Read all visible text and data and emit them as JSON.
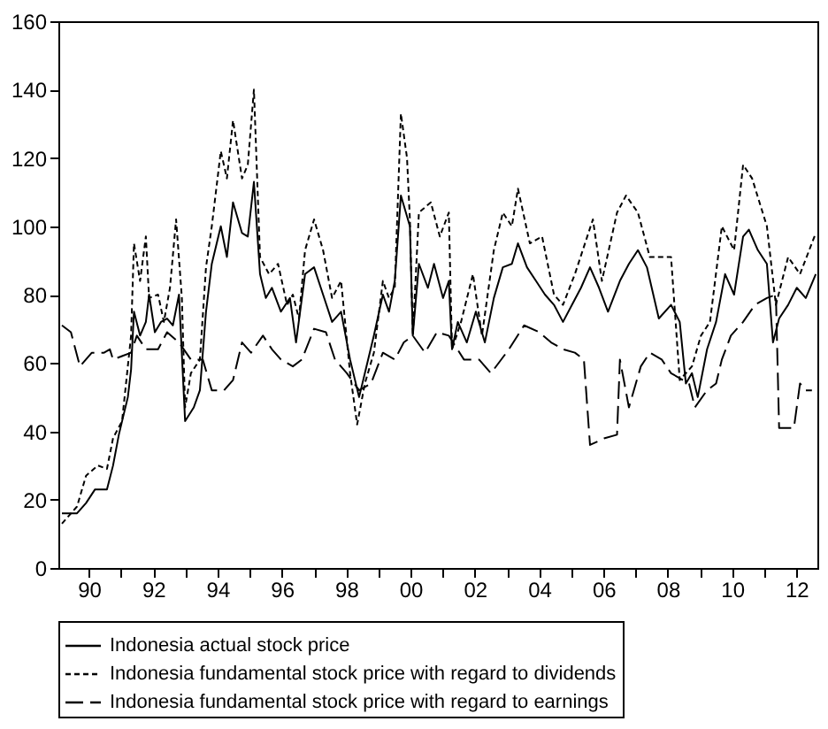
{
  "chart_data": {
    "type": "line",
    "xlim": [
      1989.05,
      2012.65
    ],
    "xticks": [
      {
        "value": 1990,
        "label": "90"
      },
      {
        "value": 1991,
        "label": null
      },
      {
        "value": 1992,
        "label": "92"
      },
      {
        "value": 1993,
        "label": null
      },
      {
        "value": 1994,
        "label": "94"
      },
      {
        "value": 1995,
        "label": null
      },
      {
        "value": 1996,
        "label": "96"
      },
      {
        "value": 1997,
        "label": null
      },
      {
        "value": 1998,
        "label": "98"
      },
      {
        "value": 1999,
        "label": null
      },
      {
        "value": 2000,
        "label": "00"
      },
      {
        "value": 2001,
        "label": null
      },
      {
        "value": 2002,
        "label": "02"
      },
      {
        "value": 2003,
        "label": null
      },
      {
        "value": 2004,
        "label": "04"
      },
      {
        "value": 2005,
        "label": null
      },
      {
        "value": 2006,
        "label": "06"
      },
      {
        "value": 2007,
        "label": null
      },
      {
        "value": 2008,
        "label": "08"
      },
      {
        "value": 2009,
        "label": null
      },
      {
        "value": 2010,
        "label": "10"
      },
      {
        "value": 2011,
        "label": null
      },
      {
        "value": 2012,
        "label": "12"
      }
    ],
    "ylim": [
      0,
      160
    ],
    "yticks": [
      0,
      20,
      40,
      60,
      80,
      100,
      120,
      140,
      160
    ],
    "grid": false,
    "legend": "bottom",
    "marker": "none",
    "series": [
      {
        "name": "Indonesia actual stock price",
        "color": "#000000",
        "line_style": "solid",
        "x": [
          1989.16,
          1989.63,
          1989.91,
          1990.19,
          1990.56,
          1990.75,
          1990.93,
          1991.21,
          1991.31,
          1991.4,
          1991.59,
          1991.77,
          1991.87,
          1992.05,
          1992.24,
          1992.43,
          1992.61,
          1992.8,
          1992.99,
          1993.26,
          1993.45,
          1993.64,
          1993.82,
          1994.1,
          1994.29,
          1994.48,
          1994.76,
          1994.94,
          1995.13,
          1995.32,
          1995.5,
          1995.69,
          1995.97,
          1996.25,
          1996.44,
          1996.72,
          1997.0,
          1997.28,
          1997.56,
          1997.84,
          1998.12,
          1998.4,
          1998.58,
          1998.86,
          1999.14,
          1999.33,
          1999.51,
          1999.7,
          1999.98,
          2000.07,
          2000.26,
          2000.54,
          2000.73,
          2001.01,
          2001.19,
          2001.29,
          2001.47,
          2001.75,
          2002.03,
          2002.31,
          2002.59,
          2002.87,
          2003.15,
          2003.34,
          2003.62,
          2003.9,
          2004.18,
          2004.46,
          2004.74,
          2005.02,
          2005.3,
          2005.58,
          2005.86,
          2006.14,
          2006.51,
          2006.79,
          2007.07,
          2007.35,
          2007.72,
          2008.1,
          2008.37,
          2008.56,
          2008.75,
          2008.93,
          2009.22,
          2009.5,
          2009.78,
          2010.06,
          2010.34,
          2010.52,
          2010.8,
          2011.08,
          2011.27,
          2011.46,
          2011.74,
          2012.01,
          2012.29,
          2012.6
        ],
        "values": [
          16,
          16,
          19,
          23,
          23,
          30,
          39,
          50,
          58,
          75,
          68,
          72,
          80,
          69,
          72,
          73,
          71,
          80,
          43,
          47,
          52,
          75,
          89,
          100,
          91,
          107,
          98,
          97,
          113,
          86,
          79,
          82,
          75,
          79,
          66,
          86,
          88,
          80,
          72,
          75,
          61,
          50,
          57,
          68,
          80,
          75,
          84,
          109,
          100,
          68,
          89,
          82,
          89,
          79,
          84,
          64,
          72,
          66,
          75,
          66,
          79,
          88,
          89,
          95,
          88,
          84,
          80,
          77,
          72,
          77,
          82,
          88,
          82,
          75,
          84,
          89,
          93,
          88,
          73,
          77,
          72,
          54,
          57,
          50,
          64,
          72,
          86,
          80,
          97,
          99,
          93,
          89,
          66,
          73,
          77,
          82,
          79,
          86
        ]
      },
      {
        "name": "Indonesia fundamental stock price with regard to dividends",
        "color": "#000000",
        "line_style": "dotted",
        "x": [
          1989.16,
          1989.63,
          1989.91,
          1990.28,
          1990.56,
          1990.75,
          1991.03,
          1991.31,
          1991.4,
          1991.59,
          1991.77,
          1991.87,
          1992.15,
          1992.33,
          1992.52,
          1992.71,
          1992.89,
          1992.99,
          1993.17,
          1993.45,
          1993.64,
          1993.82,
          1994.1,
          1994.29,
          1994.48,
          1994.76,
          1994.94,
          1995.13,
          1995.32,
          1995.6,
          1995.88,
          1996.16,
          1996.34,
          1996.53,
          1996.72,
          1997.0,
          1997.28,
          1997.56,
          1997.84,
          1998.12,
          1998.34,
          1998.58,
          1998.86,
          1999.14,
          1999.33,
          1999.51,
          1999.7,
          1999.89,
          1999.98,
          2000.07,
          2000.26,
          2000.63,
          2000.91,
          2001.19,
          2001.29,
          2001.57,
          2001.94,
          2002.22,
          2002.59,
          2002.87,
          2003.15,
          2003.34,
          2003.71,
          2004.09,
          2004.46,
          2004.74,
          2005.11,
          2005.67,
          2005.95,
          2006.42,
          2006.7,
          2007.07,
          2007.44,
          2008.1,
          2008.37,
          2008.75,
          2009.03,
          2009.31,
          2009.68,
          2010.06,
          2010.34,
          2010.62,
          2011.08,
          2011.36,
          2011.74,
          2012.11,
          2012.6
        ],
        "values": [
          13,
          18,
          27,
          30,
          29,
          38,
          43,
          68,
          95,
          84,
          97,
          79,
          80,
          72,
          82,
          102,
          79,
          47,
          57,
          61,
          88,
          100,
          122,
          114,
          131,
          114,
          118,
          140,
          91,
          86,
          89,
          77,
          80,
          73,
          93,
          102,
          93,
          79,
          84,
          57,
          42,
          54,
          63,
          84,
          79,
          82,
          133,
          120,
          102,
          68,
          104,
          107,
          97,
          104,
          64,
          72,
          86,
          68,
          93,
          104,
          100,
          111,
          95,
          97,
          80,
          77,
          86,
          102,
          84,
          104,
          109,
          104,
          91,
          91,
          55,
          59,
          68,
          72,
          100,
          93,
          118,
          114,
          100,
          77,
          91,
          86,
          98
        ]
      },
      {
        "name": "Indonesia fundamental stock price with regard to earnings",
        "color": "#000000",
        "line_style": "dashed",
        "x": [
          1989.16,
          1989.44,
          1989.72,
          1990.09,
          1990.47,
          1990.65,
          1990.75,
          1991.03,
          1991.31,
          1991.49,
          1991.77,
          1992.15,
          1992.43,
          1992.8,
          1993.17,
          1993.54,
          1993.82,
          1994.2,
          1994.48,
          1994.76,
          1995.04,
          1995.41,
          1995.69,
          1995.97,
          1996.34,
          1996.62,
          1997.0,
          1997.37,
          1997.65,
          1998.02,
          1998.4,
          1998.77,
          1999.14,
          1999.51,
          1999.79,
          2000.07,
          2000.45,
          2000.82,
          2001.19,
          2001.66,
          2002.13,
          2002.5,
          2003.06,
          2003.53,
          2004.0,
          2004.37,
          2004.74,
          2005.11,
          2005.39,
          2005.58,
          2006.04,
          2006.42,
          2006.51,
          2006.79,
          2007.16,
          2007.44,
          2007.81,
          2008.1,
          2008.47,
          2008.66,
          2008.84,
          2009.22,
          2009.5,
          2009.68,
          2009.96,
          2010.34,
          2010.71,
          2011.08,
          2011.36,
          2011.46,
          2011.92,
          2012.11,
          2012.29,
          2012.48
        ],
        "values": [
          71,
          69,
          59,
          63,
          63,
          64,
          61,
          62,
          63,
          68,
          64,
          64,
          69,
          66,
          61,
          61,
          52,
          52,
          55,
          66,
          63,
          68,
          64,
          61,
          59,
          61,
          70,
          69,
          61,
          57,
          52,
          54,
          63,
          61,
          66,
          68,
          63,
          69,
          68,
          61,
          61,
          57,
          64,
          71,
          69,
          66,
          64,
          63,
          61,
          36,
          38,
          39,
          61,
          47,
          59,
          63,
          61,
          57,
          55,
          54,
          47,
          52,
          54,
          61,
          68,
          72,
          77,
          79,
          80,
          41,
          41,
          54,
          52,
          52
        ]
      }
    ]
  }
}
